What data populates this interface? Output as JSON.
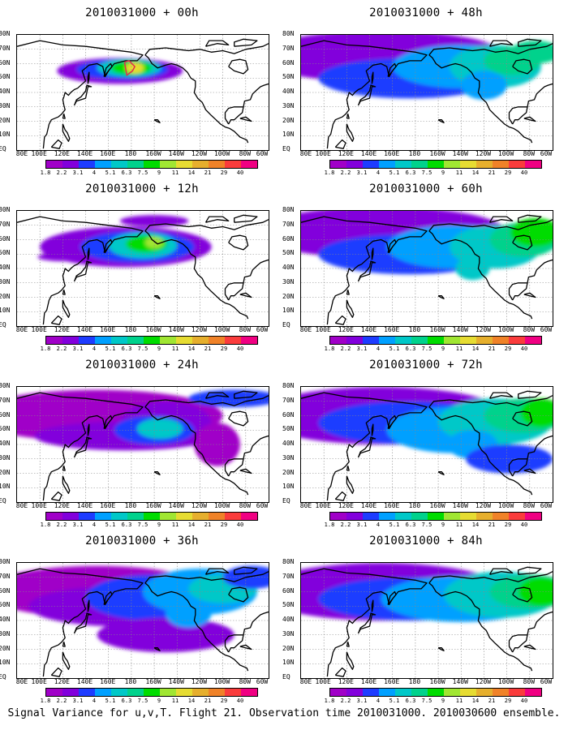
{
  "panels": [
    {
      "title": "2010031000 + 00h",
      "intensity": 0
    },
    {
      "title": "2010031000 + 48h",
      "intensity": 4
    },
    {
      "title": "2010031000 + 12h",
      "intensity": 1
    },
    {
      "title": "2010031000 + 60h",
      "intensity": 5
    },
    {
      "title": "2010031000 + 24h",
      "intensity": 2
    },
    {
      "title": "2010031000 + 72h",
      "intensity": 6
    },
    {
      "title": "2010031000 + 36h",
      "intensity": 3
    },
    {
      "title": "2010031000 + 84h",
      "intensity": 7
    }
  ],
  "lat_labels": [
    "80N",
    "70N",
    "60N",
    "50N",
    "40N",
    "30N",
    "20N",
    "10N",
    "EQ"
  ],
  "lon_labels": [
    "80E",
    "100E",
    "120E",
    "140E",
    "160E",
    "180",
    "160W",
    "140W",
    "120W",
    "100W",
    "80W",
    "60W"
  ],
  "colorbar": {
    "colors": [
      "#a000c8",
      "#8200dc",
      "#1e3cff",
      "#00a0ff",
      "#00c8c8",
      "#00d28c",
      "#00dc00",
      "#a0e632",
      "#e6dc32",
      "#e6af2d",
      "#f08228",
      "#fa3c3c",
      "#f00082"
    ],
    "labels": [
      "1.8",
      "2.2",
      "3.1",
      "4",
      "5.1",
      "6.3",
      "7.5",
      "9",
      "11",
      "14",
      "21",
      "29",
      "40"
    ]
  },
  "caption": "Signal Variance for u,v,T. Flight 21. Observation time 2010031000. 2010030600 ensemble."
}
